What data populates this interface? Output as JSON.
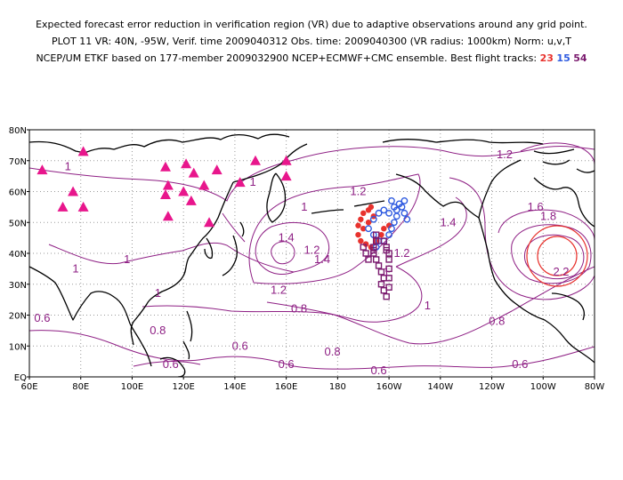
{
  "header": {
    "line1": "Expected forecast error reduction in verification region (VR) due to adaptive observations around any grid point.",
    "line2": "PLOT 11 VR: 40N, -95W, Verif. time 2009040312 Obs. time: 2009040300 (VR radius: 1000km) Norm: u,v,T",
    "line3_prefix": "NCEP/UM ETKF based on 177-member 2009032900 NCEP+ECMWF+CMC ensemble. Best flight tracks:",
    "tracks": [
      {
        "label": "23",
        "color": "#e8322d"
      },
      {
        "label": "15",
        "color": "#2f5be0"
      },
      {
        "label": "54",
        "color": "#7a1a6e"
      }
    ]
  },
  "map": {
    "lat_labels": [
      "80N",
      "70N",
      "60N",
      "50N",
      "40N",
      "30N",
      "20N",
      "10N",
      "EQ"
    ],
    "lon_labels": [
      "60E",
      "80E",
      "100E",
      "120E",
      "140E",
      "160E",
      "180",
      "160W",
      "140W",
      "120W",
      "100W",
      "80W"
    ],
    "contour_color": "#8e1f84",
    "marker_color": "#e8168c",
    "contour_labels": [
      {
        "text": "1.2",
        "lon": -115,
        "lat": 72
      },
      {
        "text": "1",
        "lon": 75,
        "lat": 68
      },
      {
        "text": "1",
        "lon": 147,
        "lat": 63
      },
      {
        "text": "1.2",
        "lon": -172,
        "lat": 60
      },
      {
        "text": "1",
        "lon": 167,
        "lat": 55
      },
      {
        "text": "1.4",
        "lon": -137,
        "lat": 50
      },
      {
        "text": "1.6",
        "lon": -103,
        "lat": 55
      },
      {
        "text": "1.8",
        "lon": -98,
        "lat": 52
      },
      {
        "text": "1.4",
        "lon": 160,
        "lat": 45
      },
      {
        "text": "1.4",
        "lon": 174,
        "lat": 38
      },
      {
        "text": "1.2",
        "lon": 170,
        "lat": 41
      },
      {
        "text": "1.2",
        "lon": -155,
        "lat": 40
      },
      {
        "text": "1",
        "lon": 78,
        "lat": 35
      },
      {
        "text": "1",
        "lon": 98,
        "lat": 38
      },
      {
        "text": "1",
        "lon": -161,
        "lat": 34
      },
      {
        "text": "1.2",
        "lon": 157,
        "lat": 28
      },
      {
        "text": "1",
        "lon": 110,
        "lat": 27
      },
      {
        "text": "2.2",
        "lon": -93,
        "lat": 34
      },
      {
        "text": "0.8",
        "lon": 165,
        "lat": 22
      },
      {
        "text": "1",
        "lon": -145,
        "lat": 23
      },
      {
        "text": "0.6",
        "lon": 65,
        "lat": 19
      },
      {
        "text": "0.8",
        "lon": 110,
        "lat": 15
      },
      {
        "text": "0.8",
        "lon": -118,
        "lat": 18
      },
      {
        "text": "0.6",
        "lon": 142,
        "lat": 10
      },
      {
        "text": "0.8",
        "lon": 178,
        "lat": 8
      },
      {
        "text": "0.6",
        "lon": 115,
        "lat": 4
      },
      {
        "text": "0.6",
        "lon": 160,
        "lat": 4
      },
      {
        "text": "0.6",
        "lon": -164,
        "lat": 2
      },
      {
        "text": "0.6",
        "lon": -109,
        "lat": 4
      }
    ],
    "triangles": [
      {
        "lon": 65,
        "lat": 67
      },
      {
        "lon": 81,
        "lat": 73
      },
      {
        "lon": 77,
        "lat": 60
      },
      {
        "lon": 73,
        "lat": 55
      },
      {
        "lon": 81,
        "lat": 55
      },
      {
        "lon": 113,
        "lat": 68
      },
      {
        "lon": 121,
        "lat": 69
      },
      {
        "lon": 114,
        "lat": 62
      },
      {
        "lon": 113,
        "lat": 59
      },
      {
        "lon": 120,
        "lat": 60
      },
      {
        "lon": 124,
        "lat": 66
      },
      {
        "lon": 123,
        "lat": 57
      },
      {
        "lon": 128,
        "lat": 62
      },
      {
        "lon": 133,
        "lat": 67
      },
      {
        "lon": 130,
        "lat": 50
      },
      {
        "lon": 114,
        "lat": 52
      },
      {
        "lon": 142,
        "lat": 63
      },
      {
        "lon": 148,
        "lat": 70
      },
      {
        "lon": 160,
        "lat": 70
      },
      {
        "lon": 160,
        "lat": 65
      }
    ],
    "tracks": [
      {
        "name": "23",
        "symbol": "dot",
        "color": "#e8322d",
        "points": [
          [
            -172,
            49
          ],
          [
            -171,
            51
          ],
          [
            -170,
            53
          ],
          [
            -168,
            54
          ],
          [
            -167,
            55
          ],
          [
            -166,
            52
          ],
          [
            -168,
            50
          ],
          [
            -170,
            48
          ],
          [
            -172,
            46
          ],
          [
            -171,
            44
          ],
          [
            -169,
            43
          ],
          [
            -167,
            42
          ],
          [
            -165,
            44
          ],
          [
            -163,
            46
          ],
          [
            -162,
            48
          ],
          [
            -160,
            49
          ]
        ]
      },
      {
        "name": "15",
        "symbol": "circle",
        "color": "#2f5be0",
        "points": [
          [
            -165,
            42
          ],
          [
            -162,
            44
          ],
          [
            -160,
            46
          ],
          [
            -159,
            48
          ],
          [
            -158,
            50
          ],
          [
            -157,
            52
          ],
          [
            -157,
            54
          ],
          [
            -156,
            56
          ],
          [
            -155,
            55
          ],
          [
            -154,
            53
          ],
          [
            -153,
            51
          ],
          [
            -162,
            54
          ],
          [
            -164,
            53
          ],
          [
            -166,
            51
          ],
          [
            -168,
            48
          ],
          [
            -166,
            46
          ],
          [
            -164,
            44
          ],
          [
            -160,
            53
          ],
          [
            -158,
            55
          ],
          [
            -159,
            57
          ],
          [
            -154,
            57
          ]
        ]
      },
      {
        "name": "54",
        "symbol": "square",
        "color": "#7a1a6e",
        "points": [
          [
            -165,
            46
          ],
          [
            -165,
            44
          ],
          [
            -166,
            42
          ],
          [
            -166,
            40
          ],
          [
            -165,
            38
          ],
          [
            -164,
            36
          ],
          [
            -163,
            34
          ],
          [
            -162,
            32
          ],
          [
            -163,
            30
          ],
          [
            -162,
            28
          ],
          [
            -161,
            26
          ],
          [
            -160,
            29
          ],
          [
            -160,
            32
          ],
          [
            -160,
            35
          ],
          [
            -160,
            38
          ],
          [
            -161,
            41
          ],
          [
            -162,
            44
          ],
          [
            -161,
            42
          ],
          [
            -160,
            40
          ],
          [
            -169,
            40
          ],
          [
            -168,
            38
          ],
          [
            -170,
            42
          ],
          [
            -166,
            41
          ]
        ]
      }
    ]
  }
}
